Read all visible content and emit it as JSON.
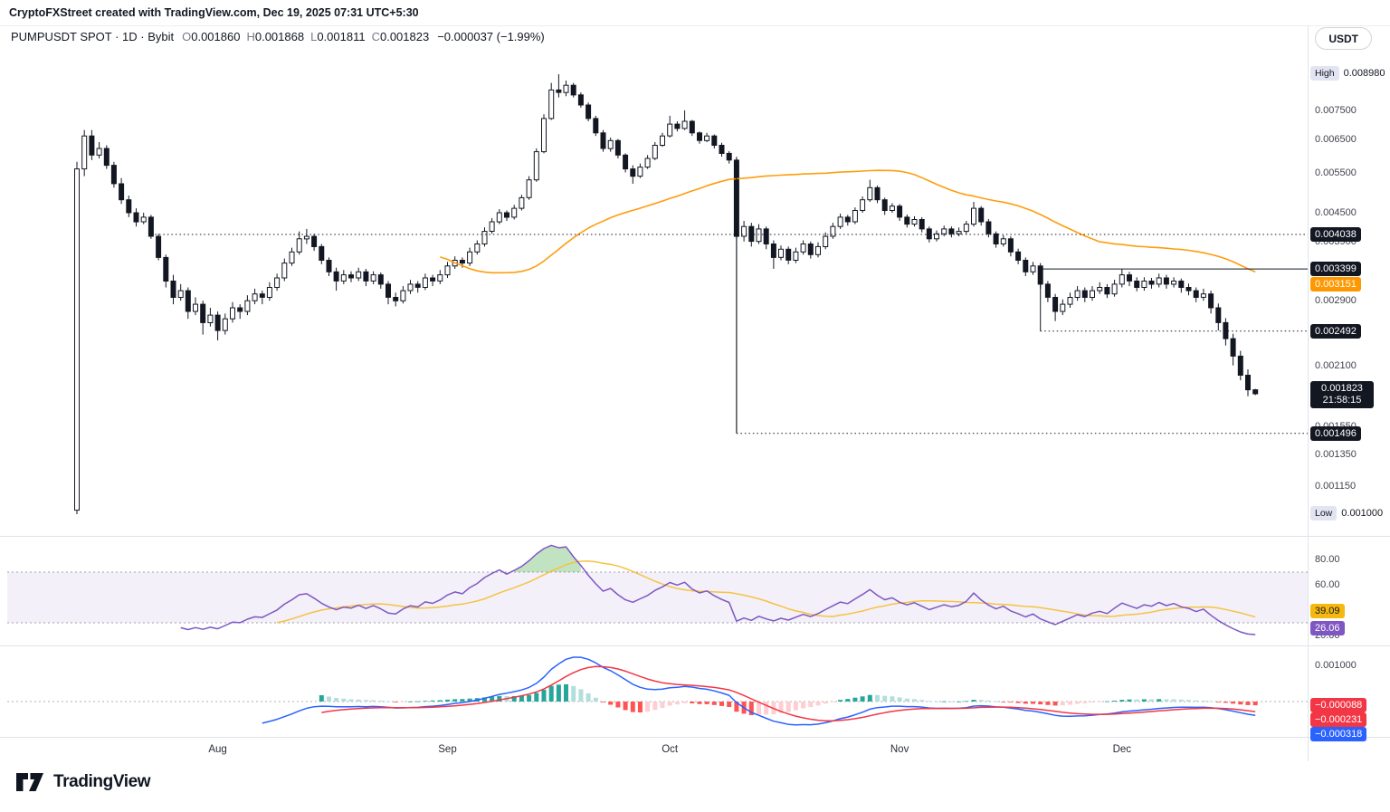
{
  "attribution": "CryptoFXStreet created with TradingView.com, Dec 19, 2025 07:31 UTC+5:30",
  "header": {
    "title": "PUMPUSDT SPOT · 1D · Bybit",
    "ohlc": [
      {
        "k": "O",
        "v": "0.001860"
      },
      {
        "k": "H",
        "v": "0.001868"
      },
      {
        "k": "L",
        "v": "0.001811"
      },
      {
        "k": "C",
        "v": "0.001823"
      }
    ],
    "change": "−0.000037 (−1.99%)",
    "currency_button": "USDT"
  },
  "price_axis": {
    "high": {
      "tag": "High",
      "label": "0.008980",
      "value": 0.00898
    },
    "low": {
      "tag": "Low",
      "label": "0.001000",
      "value": 0.001
    },
    "ticks": [
      {
        "value": 0.0075,
        "label": "0.007500"
      },
      {
        "value": 0.0065,
        "label": "0.006500"
      },
      {
        "value": 0.0055,
        "label": "0.005500"
      },
      {
        "value": 0.0045,
        "label": "0.004500"
      },
      {
        "value": 0.0039,
        "label": "0.003900"
      },
      {
        "value": 0.0029,
        "label": "0.002900"
      },
      {
        "value": 0.0021,
        "label": "0.002100"
      },
      {
        "value": 0.00155,
        "label": "0.001550"
      },
      {
        "value": 0.00135,
        "label": "0.001350"
      },
      {
        "value": 0.00115,
        "label": "0.001150"
      }
    ],
    "badges": [
      {
        "value": 0.004038,
        "label": "0.004038",
        "bg": "#131722",
        "fg": "#ffffff"
      },
      {
        "value": 0.003399,
        "label": "0.003399",
        "bg": "#131722",
        "fg": "#ffffff"
      },
      {
        "value": 0.003151,
        "label": "0.003151",
        "bg": "#ff9800",
        "fg": "#ffffff"
      },
      {
        "value": 0.002492,
        "label": "0.002492",
        "bg": "#131722",
        "fg": "#ffffff"
      },
      {
        "value": 0.001496,
        "label": "0.001496",
        "bg": "#131722",
        "fg": "#ffffff"
      }
    ],
    "last_price": {
      "label": "0.001823",
      "countdown": "21:58:15",
      "value": 0.001823,
      "bg": "#131722",
      "fg": "#ffffff"
    }
  },
  "rsi_axis": {
    "ticks": [
      {
        "value": 80,
        "label": "80.00"
      },
      {
        "value": 60,
        "label": "60.00"
      },
      {
        "value": 20,
        "label": "20.00"
      }
    ],
    "badges": [
      {
        "value": 39.09,
        "label": "39.09",
        "bg": "#f5b80e",
        "fg": "#131722"
      },
      {
        "value": 26.06,
        "label": "26.06",
        "bg": "#7e57c2",
        "fg": "#ffffff"
      }
    ]
  },
  "macd_axis": {
    "ticks": [
      {
        "value": 0.001,
        "label": "0.001000"
      }
    ],
    "badges": [
      {
        "value": -8.8e-05,
        "label": "−0.000088",
        "bg": "#f23645",
        "fg": "#ffffff"
      },
      {
        "value": -0.000231,
        "label": "−0.000231",
        "bg": "#f23645",
        "fg": "#ffffff"
      },
      {
        "value": -0.000318,
        "label": "−0.000318",
        "bg": "#2962ff",
        "fg": "#ffffff"
      }
    ]
  },
  "time_axis": {
    "months": [
      {
        "label": "Aug",
        "day": 19
      },
      {
        "label": "Sep",
        "day": 50
      },
      {
        "label": "Oct",
        "day": 80
      },
      {
        "label": "Nov",
        "day": 111
      },
      {
        "label": "Dec",
        "day": 141
      }
    ]
  },
  "logo": {
    "text": "TradingView"
  },
  "colors": {
    "up": "#ffffff",
    "down": "#131722",
    "border": "#131722",
    "ma": "#ff9800",
    "rsi": "#7e57c2",
    "rsi_ma": "#f5c342",
    "band": "rgba(126,87,194,0.09)",
    "overbought_fill": "rgba(76,175,80,0.35)",
    "macd": "#2962ff",
    "signal": "#f23645",
    "hist_up": "#26a69a",
    "hist_up_weak": "#b2dfdb",
    "hist_down": "#ff5252",
    "hist_down_weak": "#ffcdd2",
    "grid": "#e0e3eb",
    "level": "#131722",
    "dash": "#787b86"
  },
  "chart_data": {
    "type": "candlestick",
    "symbol": "PUMPUSDT",
    "exchange": "Bybit",
    "interval": "1D",
    "scale": "log",
    "price_unit": 0.001,
    "ylim": [
      0.001,
      0.00898
    ],
    "candles": [
      [
        1.02,
        5.8,
        1,
        5.6
      ],
      [
        5.6,
        6.8,
        5.4,
        6.6
      ],
      [
        6.6,
        6.8,
        5.85,
        6
      ],
      [
        6,
        6.4,
        5.9,
        6.2
      ],
      [
        6.2,
        6.3,
        5.6,
        5.7
      ],
      [
        5.7,
        5.8,
        5.1,
        5.2
      ],
      [
        5.2,
        5.35,
        4.7,
        4.8
      ],
      [
        4.8,
        4.9,
        4.4,
        4.5
      ],
      [
        4.5,
        4.6,
        4.2,
        4.3
      ],
      [
        4.3,
        4.5,
        4.25,
        4.4
      ],
      [
        4.4,
        4.45,
        3.95,
        4
      ],
      [
        4,
        4.05,
        3.55,
        3.6
      ],
      [
        3.6,
        3.65,
        3.1,
        3.2
      ],
      [
        3.2,
        3.3,
        2.85,
        2.95
      ],
      [
        2.95,
        3.15,
        2.9,
        3.05
      ],
      [
        3.05,
        3.1,
        2.65,
        2.75
      ],
      [
        2.75,
        2.95,
        2.7,
        2.85
      ],
      [
        2.85,
        2.9,
        2.45,
        2.6
      ],
      [
        2.6,
        2.8,
        2.55,
        2.7
      ],
      [
        2.7,
        2.75,
        2.38,
        2.5
      ],
      [
        2.5,
        2.72,
        2.45,
        2.65
      ],
      [
        2.65,
        2.88,
        2.6,
        2.8
      ],
      [
        2.8,
        2.85,
        2.65,
        2.75
      ],
      [
        2.75,
        2.98,
        2.7,
        2.9
      ],
      [
        2.9,
        3.08,
        2.85,
        3
      ],
      [
        3,
        3.05,
        2.85,
        2.95
      ],
      [
        2.95,
        3.18,
        2.9,
        3.1
      ],
      [
        3.1,
        3.32,
        3.05,
        3.25
      ],
      [
        3.25,
        3.58,
        3.2,
        3.5
      ],
      [
        3.5,
        3.78,
        3.45,
        3.7
      ],
      [
        3.7,
        4.1,
        3.65,
        3.95
      ],
      [
        3.95,
        4.15,
        3.85,
        4
      ],
      [
        4,
        4.05,
        3.72,
        3.8
      ],
      [
        3.8,
        3.85,
        3.48,
        3.55
      ],
      [
        3.55,
        3.6,
        3.28,
        3.35
      ],
      [
        3.35,
        3.42,
        3.05,
        3.2
      ],
      [
        3.2,
        3.38,
        3.15,
        3.3
      ],
      [
        3.3,
        3.36,
        3.18,
        3.25
      ],
      [
        3.25,
        3.42,
        3.2,
        3.35
      ],
      [
        3.35,
        3.4,
        3.12,
        3.2
      ],
      [
        3.2,
        3.36,
        3.15,
        3.3
      ],
      [
        3.3,
        3.34,
        3.08,
        3.15
      ],
      [
        3.15,
        3.2,
        2.85,
        2.95
      ],
      [
        2.95,
        3.02,
        2.82,
        2.9
      ],
      [
        2.9,
        3.12,
        2.86,
        3.05
      ],
      [
        3.05,
        3.22,
        3,
        3.15
      ],
      [
        3.15,
        3.2,
        3.02,
        3.1
      ],
      [
        3.1,
        3.32,
        3.06,
        3.25
      ],
      [
        3.25,
        3.3,
        3.12,
        3.2
      ],
      [
        3.2,
        3.38,
        3.15,
        3.3
      ],
      [
        3.3,
        3.52,
        3.25,
        3.45
      ],
      [
        3.45,
        3.62,
        3.4,
        3.55
      ],
      [
        3.55,
        3.6,
        3.42,
        3.5
      ],
      [
        3.5,
        3.78,
        3.45,
        3.7
      ],
      [
        3.7,
        3.92,
        3.65,
        3.85
      ],
      [
        3.85,
        4.18,
        3.8,
        4.1
      ],
      [
        4.1,
        4.38,
        4.05,
        4.3
      ],
      [
        4.3,
        4.58,
        4.25,
        4.5
      ],
      [
        4.5,
        4.55,
        4.32,
        4.4
      ],
      [
        4.4,
        4.68,
        4.35,
        4.6
      ],
      [
        4.6,
        4.92,
        4.55,
        4.85
      ],
      [
        4.85,
        5.4,
        4.8,
        5.3
      ],
      [
        5.3,
        6.2,
        5.25,
        6.1
      ],
      [
        6.1,
        7.35,
        6.05,
        7.2
      ],
      [
        7.2,
        8.6,
        7.15,
        8.3
      ],
      [
        8.3,
        8.98,
        8,
        8.2
      ],
      [
        8.2,
        8.7,
        8.05,
        8.5
      ],
      [
        8.5,
        8.6,
        8,
        8.1
      ],
      [
        8.1,
        8.2,
        7.6,
        7.7
      ],
      [
        7.7,
        7.8,
        7.1,
        7.2
      ],
      [
        7.2,
        7.3,
        6.6,
        6.7
      ],
      [
        6.7,
        6.8,
        6.1,
        6.2
      ],
      [
        6.2,
        6.55,
        6.1,
        6.45
      ],
      [
        6.45,
        6.5,
        5.9,
        6
      ],
      [
        6,
        6.05,
        5.5,
        5.6
      ],
      [
        5.6,
        5.7,
        5.2,
        5.4
      ],
      [
        5.4,
        5.75,
        5.35,
        5.65
      ],
      [
        5.65,
        6,
        5.6,
        5.9
      ],
      [
        5.9,
        6.4,
        5.85,
        6.3
      ],
      [
        6.3,
        6.7,
        6.25,
        6.6
      ],
      [
        6.6,
        7.3,
        6.55,
        7
      ],
      [
        7,
        7.1,
        6.75,
        6.85
      ],
      [
        6.85,
        7.5,
        6.8,
        7.1
      ],
      [
        7.1,
        7.15,
        6.6,
        6.7
      ],
      [
        6.7,
        6.75,
        6.35,
        6.45
      ],
      [
        6.45,
        6.7,
        6.4,
        6.6
      ],
      [
        6.6,
        6.65,
        6.2,
        6.3
      ],
      [
        6.3,
        6.38,
        5.95,
        6.05
      ],
      [
        6.05,
        6.12,
        5.75,
        5.85
      ],
      [
        5.85,
        5.95,
        1.5,
        4
      ],
      [
        4,
        4.32,
        3.9,
        4.2
      ],
      [
        4.2,
        4.28,
        3.8,
        3.9
      ],
      [
        3.9,
        4.25,
        3.85,
        4.15
      ],
      [
        4.15,
        4.2,
        3.75,
        3.85
      ],
      [
        3.85,
        3.92,
        3.4,
        3.6
      ],
      [
        3.6,
        3.82,
        3.55,
        3.75
      ],
      [
        3.75,
        3.8,
        3.48,
        3.55
      ],
      [
        3.55,
        3.78,
        3.5,
        3.7
      ],
      [
        3.7,
        3.92,
        3.65,
        3.85
      ],
      [
        3.85,
        3.9,
        3.58,
        3.65
      ],
      [
        3.65,
        3.88,
        3.6,
        3.8
      ],
      [
        3.8,
        4.08,
        3.75,
        4
      ],
      [
        4,
        4.28,
        3.95,
        4.2
      ],
      [
        4.2,
        4.48,
        4.15,
        4.4
      ],
      [
        4.4,
        4.45,
        4.22,
        4.3
      ],
      [
        4.3,
        4.62,
        4.25,
        4.55
      ],
      [
        4.55,
        4.88,
        4.5,
        4.8
      ],
      [
        4.8,
        5.3,
        4.75,
        5.1
      ],
      [
        5.1,
        5.15,
        4.72,
        4.8
      ],
      [
        4.8,
        4.85,
        4.45,
        4.55
      ],
      [
        4.55,
        4.72,
        4.5,
        4.65
      ],
      [
        4.65,
        4.7,
        4.32,
        4.4
      ],
      [
        4.4,
        4.46,
        4.18,
        4.25
      ],
      [
        4.25,
        4.42,
        4.2,
        4.35
      ],
      [
        4.35,
        4.4,
        4.08,
        4.15
      ],
      [
        4.15,
        4.2,
        3.88,
        3.95
      ],
      [
        3.95,
        4.12,
        3.9,
        4.05
      ],
      [
        4.05,
        4.22,
        4,
        4.15
      ],
      [
        4.15,
        4.2,
        3.98,
        4.05
      ],
      [
        4.05,
        4.18,
        4,
        4.1
      ],
      [
        4.1,
        4.32,
        4.05,
        4.25
      ],
      [
        4.25,
        4.75,
        4.2,
        4.6
      ],
      [
        4.6,
        4.65,
        4.22,
        4.3
      ],
      [
        4.3,
        4.36,
        3.98,
        4.05
      ],
      [
        4.05,
        4.1,
        3.78,
        3.85
      ],
      [
        3.85,
        4.02,
        3.8,
        3.95
      ],
      [
        3.95,
        4,
        3.62,
        3.7
      ],
      [
        3.7,
        3.76,
        3.48,
        3.55
      ],
      [
        3.55,
        3.6,
        3.28,
        3.35
      ],
      [
        3.35,
        3.52,
        3.3,
        3.45
      ],
      [
        3.45,
        3.5,
        3.08,
        3.15
      ],
      [
        3.15,
        3.2,
        2.88,
        2.95
      ],
      [
        2.95,
        3,
        2.62,
        2.75
      ],
      [
        2.75,
        2.92,
        2.7,
        2.85
      ],
      [
        2.85,
        3.02,
        2.8,
        2.95
      ],
      [
        2.95,
        3.12,
        2.9,
        3.05
      ],
      [
        3.05,
        3.1,
        2.88,
        2.95
      ],
      [
        2.95,
        3.12,
        2.9,
        3.05
      ],
      [
        3.05,
        3.18,
        3,
        3.1
      ],
      [
        3.1,
        3.15,
        2.94,
        3
      ],
      [
        3,
        3.22,
        2.96,
        3.15
      ],
      [
        3.15,
        3.4,
        3.1,
        3.3
      ],
      [
        3.3,
        3.35,
        3.12,
        3.2
      ],
      [
        3.2,
        3.26,
        3.04,
        3.1
      ],
      [
        3.1,
        3.26,
        3.05,
        3.2
      ],
      [
        3.2,
        3.25,
        3.08,
        3.15
      ],
      [
        3.15,
        3.32,
        3.1,
        3.25
      ],
      [
        3.25,
        3.3,
        3.08,
        3.15
      ],
      [
        3.15,
        3.26,
        3.1,
        3.2
      ],
      [
        3.2,
        3.24,
        3.02,
        3.1
      ],
      [
        3.1,
        3.16,
        2.98,
        3.05
      ],
      [
        3.05,
        3.1,
        2.88,
        2.95
      ],
      [
        2.95,
        3.08,
        2.9,
        3
      ],
      [
        3,
        3.05,
        2.72,
        2.8
      ],
      [
        2.8,
        2.86,
        2.5,
        2.6
      ],
      [
        2.6,
        2.66,
        2.32,
        2.4
      ],
      [
        2.4,
        2.46,
        2.1,
        2.2
      ],
      [
        2.2,
        2.26,
        1.95,
        2
      ],
      [
        2,
        2.06,
        1.8,
        1.86
      ],
      [
        1.86,
        1.868,
        1.811,
        1.823
      ]
    ],
    "indicators": {
      "sma": {
        "period": 50,
        "last": 0.003151
      },
      "rsi": {
        "period": 14,
        "ma_period": 14,
        "last": 26.06,
        "ma_last": 39.09,
        "bands": [
          70,
          30
        ]
      },
      "macd": {
        "fast": 12,
        "slow": 26,
        "signal": 9,
        "last_macd": -0.000318,
        "last_signal": -0.000231,
        "last_hist": -8.8e-05
      }
    },
    "levels": [
      {
        "type": "hline_dotted",
        "price": 0.004038,
        "from_day": 10
      },
      {
        "type": "hline_solid",
        "price": 0.003399,
        "from_day": 130
      },
      {
        "type": "hline_dotted",
        "price": 0.002492,
        "from_day": 130
      },
      {
        "type": "hline_dotted",
        "price": 0.001496,
        "from_day": 89
      },
      {
        "type": "vline",
        "day": 130,
        "from_price": 0.003399,
        "to_price": 0.002492
      },
      {
        "type": "vline",
        "day": 89,
        "from_price": 0.0059,
        "to_price": 0.001496
      }
    ]
  }
}
